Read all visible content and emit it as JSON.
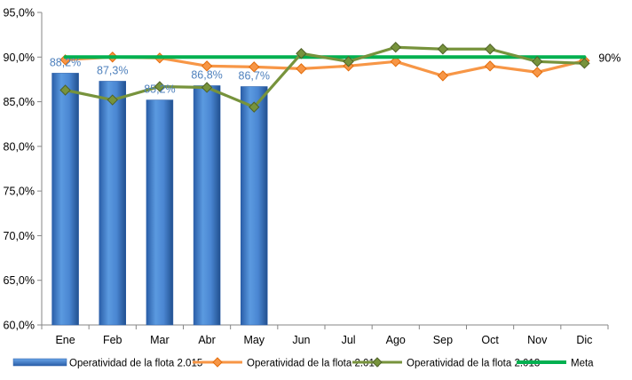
{
  "chart_data": {
    "type": "bar",
    "title": "",
    "xlabel": "",
    "ylabel": "",
    "ylim": [
      60,
      95
    ],
    "y_ticks": [
      "60,0%",
      "65,0%",
      "70,0%",
      "75,0%",
      "80,0%",
      "85,0%",
      "90,0%",
      "95,0%"
    ],
    "y_tick_values": [
      60,
      65,
      70,
      75,
      80,
      85,
      90,
      95
    ],
    "grid": false,
    "legend_position": "bottom",
    "categories": [
      "Ene",
      "Feb",
      "Mar",
      "Abr",
      "May",
      "Jun",
      "Jul",
      "Ago",
      "Sep",
      "Oct",
      "Nov",
      "Dic"
    ],
    "series": [
      {
        "name": "Operatividad de la flota 2.015",
        "type": "bar",
        "color": "#3f7fcf",
        "values": [
          88.2,
          87.3,
          85.2,
          86.8,
          86.7,
          null,
          null,
          null,
          null,
          null,
          null,
          null
        ],
        "labels": [
          "88,2%",
          "87,3%",
          "85,2%",
          "86,8%",
          "86,7%",
          "",
          "",
          "",
          "",
          "",
          "",
          ""
        ]
      },
      {
        "name": "Operatividad de la flota 2.014",
        "type": "line",
        "marker": "diamond",
        "color": "#f79646",
        "values": [
          89.7,
          90.0,
          89.9,
          89.0,
          88.9,
          88.7,
          89.0,
          89.5,
          87.9,
          89.0,
          88.3,
          89.6
        ]
      },
      {
        "name": "Operatividad de la flota 2.013",
        "type": "line",
        "marker": "diamond",
        "color": "#77933c",
        "values": [
          86.3,
          85.2,
          86.7,
          86.6,
          84.4,
          90.4,
          89.5,
          91.1,
          90.9,
          90.9,
          89.5,
          89.3
        ]
      },
      {
        "name": "Meta",
        "type": "line",
        "color": "#00b050",
        "values": [
          90,
          90,
          90,
          90,
          90,
          90,
          90,
          90,
          90,
          90,
          90,
          90
        ],
        "end_label": "90%"
      }
    ]
  }
}
